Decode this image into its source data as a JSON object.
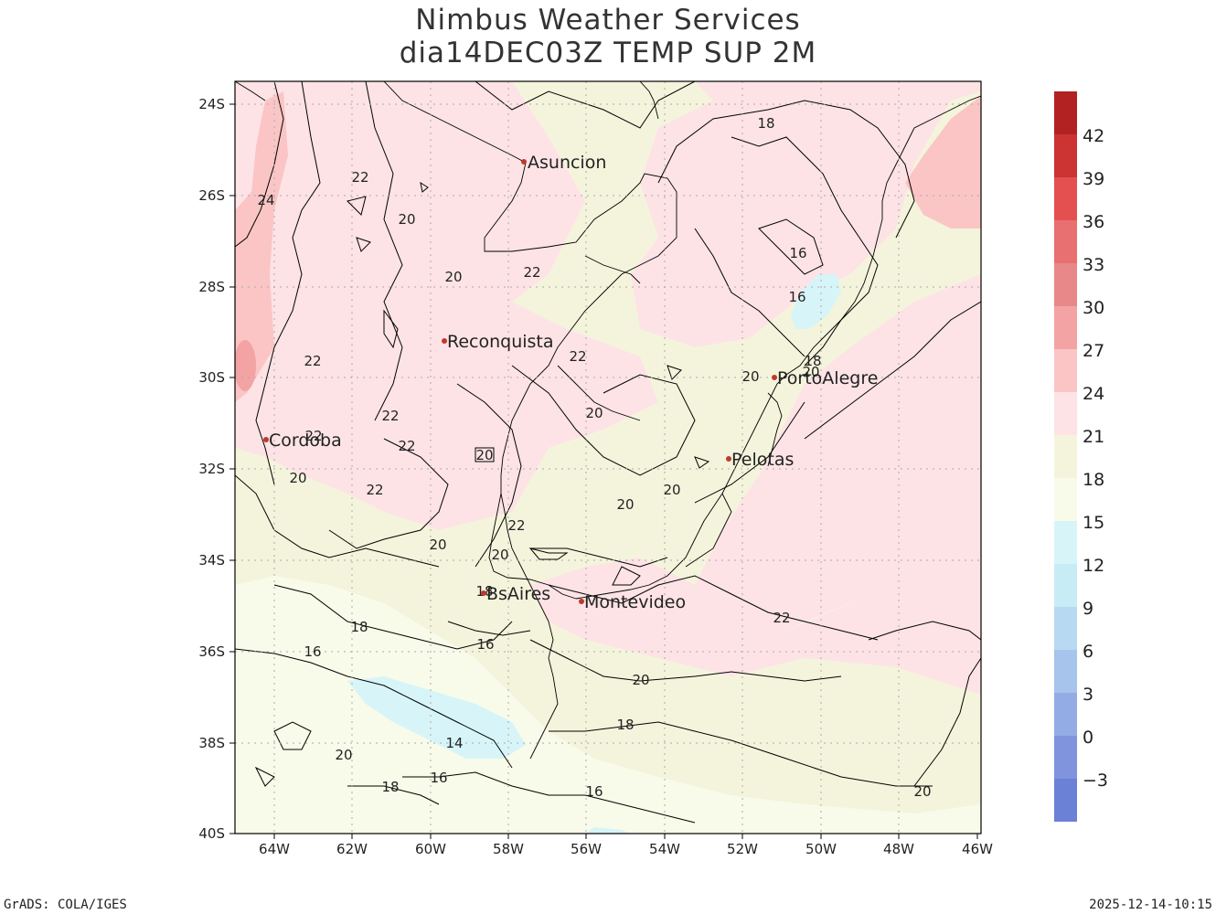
{
  "header": {
    "title": "Nimbus Weather Services",
    "subtitle": "dia14DEC03Z TEMP SUP 2M"
  },
  "axes": {
    "lat_ticks": [
      "24S",
      "26S",
      "28S",
      "30S",
      "32S",
      "34S",
      "36S",
      "38S",
      "40S"
    ],
    "lon_ticks": [
      "64W",
      "62W",
      "60W",
      "58W",
      "56W",
      "54W",
      "52W",
      "50W",
      "48W",
      "46W"
    ]
  },
  "colorbar": {
    "labels": [
      "42",
      "39",
      "36",
      "33",
      "30",
      "27",
      "24",
      "21",
      "18",
      "15",
      "12",
      "9",
      "6",
      "3",
      "0",
      "−3"
    ],
    "colors": [
      "#b22222",
      "#cc3333",
      "#e45050",
      "#e87070",
      "#e88888",
      "#f3a3a3",
      "#fbc5c5",
      "#fde3e6",
      "#f4f4dc",
      "#f8fbe9",
      "#d7f5f8",
      "#c8ecf5",
      "#b7d9f1",
      "#a6c4ec",
      "#93ace6",
      "#7f94dd",
      "#6b81d6"
    ]
  },
  "cities": [
    {
      "name": "Asuncion"
    },
    {
      "name": "Reconquista"
    },
    {
      "name": "Cordoba"
    },
    {
      "name": "PortoAlegre"
    },
    {
      "name": "Pelotas"
    },
    {
      "name": "BsAires"
    },
    {
      "name": "Montevideo"
    }
  ],
  "contour_labels": [
    "18",
    "22",
    "24",
    "20",
    "20",
    "22",
    "16",
    "16",
    "22",
    "22",
    "18",
    "20",
    "20",
    "22",
    "20",
    "22",
    "22",
    "22",
    "20",
    "20",
    "20",
    "20",
    "22",
    "20",
    "20",
    "18",
    "16",
    "18",
    "22",
    "16",
    "20",
    "14",
    "18",
    "20",
    "16",
    "18",
    "16",
    "20"
  ],
  "footer": {
    "left": "GrADS: COLA/IGES",
    "right": "2025-12-14-10:15"
  }
}
